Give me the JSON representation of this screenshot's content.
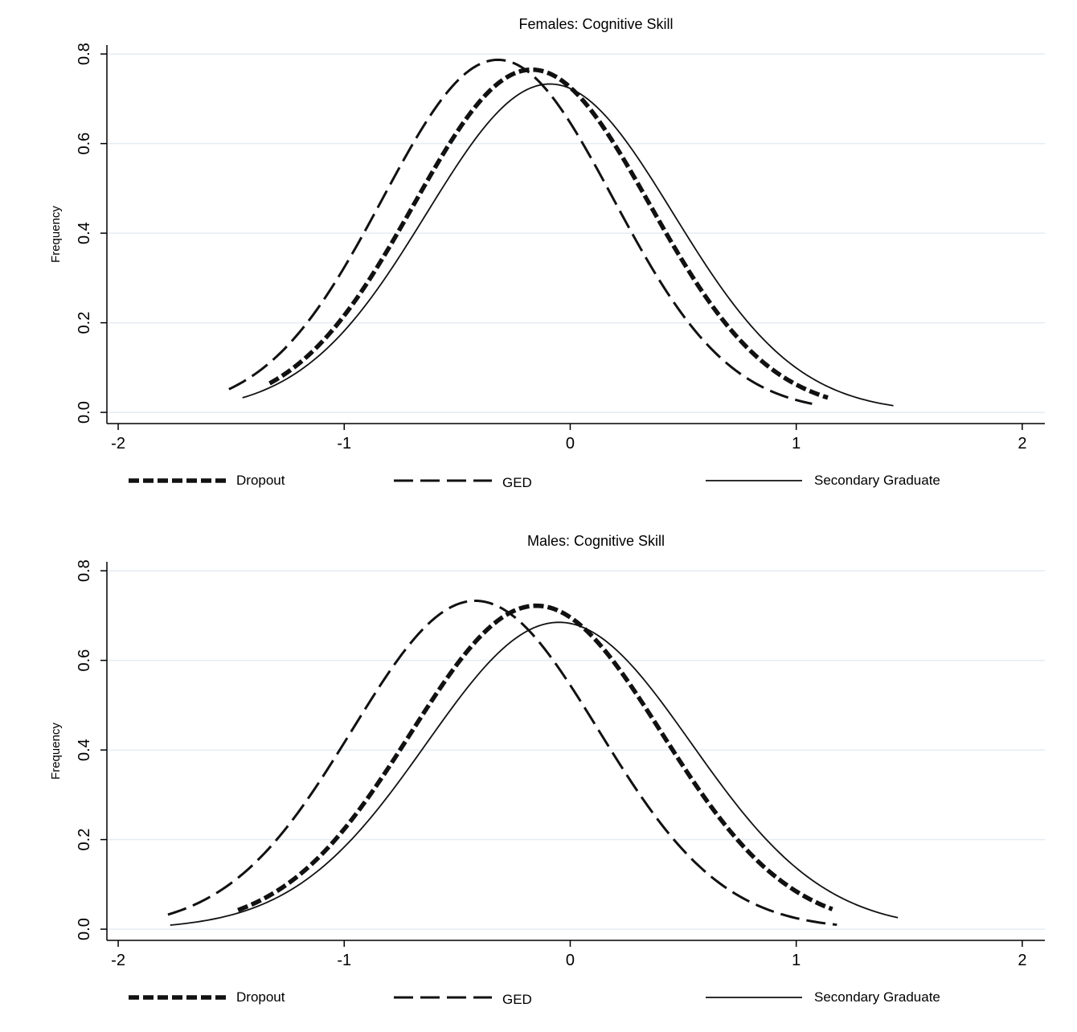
{
  "chart_data": [
    {
      "type": "line",
      "title": "Females: Cognitive Skill",
      "xlabel": "",
      "ylabel": "Frequency",
      "xlim": [
        -2.05,
        2.1
      ],
      "ylim": [
        -0.025,
        0.82
      ],
      "xticks": [
        -2,
        -1,
        0,
        1,
        2
      ],
      "xtick_labels": [
        "-2",
        "-1",
        "0",
        "1",
        "2"
      ],
      "yticks": [
        0,
        0.2,
        0.4,
        0.6,
        0.8
      ],
      "ytick_labels": [
        "0.0",
        "0.2",
        "0.4",
        "0.6",
        "0.8"
      ],
      "grid": true,
      "legend_position": "bottom",
      "series": [
        {
          "name": "Dropout",
          "style": "heavy-short-dash",
          "x_min": -1.33,
          "x_max": 1.14,
          "peak_x": -0.17,
          "peak_y": 0.765,
          "sd": 0.522
        },
        {
          "name": "GED",
          "style": "long-dash",
          "x_min": -1.51,
          "x_max": 1.07,
          "peak_x": -0.32,
          "peak_y": 0.787,
          "sd": 0.51
        },
        {
          "name": "Secondary Graduate",
          "style": "solid",
          "x_min": -1.45,
          "x_max": 1.43,
          "peak_x": -0.09,
          "peak_y": 0.733,
          "sd": 0.545
        }
      ]
    },
    {
      "type": "line",
      "title": "Males: Cognitive Skill",
      "xlabel": "",
      "ylabel": "Frequency",
      "xlim": [
        -2.05,
        2.1
      ],
      "ylim": [
        -0.025,
        0.82
      ],
      "xticks": [
        -2,
        -1,
        0,
        1,
        2
      ],
      "xtick_labels": [
        "-2",
        "-1",
        "0",
        "1",
        "2"
      ],
      "yticks": [
        0,
        0.2,
        0.4,
        0.6,
        0.8
      ],
      "ytick_labels": [
        "0.0",
        "0.2",
        "0.4",
        "0.6",
        "0.8"
      ],
      "grid": true,
      "legend_position": "bottom",
      "series": [
        {
          "name": "Dropout",
          "style": "heavy-short-dash",
          "x_min": -1.47,
          "x_max": 1.16,
          "peak_x": -0.15,
          "peak_y": 0.722,
          "sd": 0.555
        },
        {
          "name": "GED",
          "style": "long-dash",
          "x_min": -1.78,
          "x_max": 1.18,
          "peak_x": -0.42,
          "peak_y": 0.733,
          "sd": 0.545
        },
        {
          "name": "Secondary Graduate",
          "style": "solid",
          "x_min": -1.77,
          "x_max": 1.45,
          "peak_x": -0.05,
          "peak_y": 0.685,
          "sd": 0.585
        }
      ]
    }
  ]
}
